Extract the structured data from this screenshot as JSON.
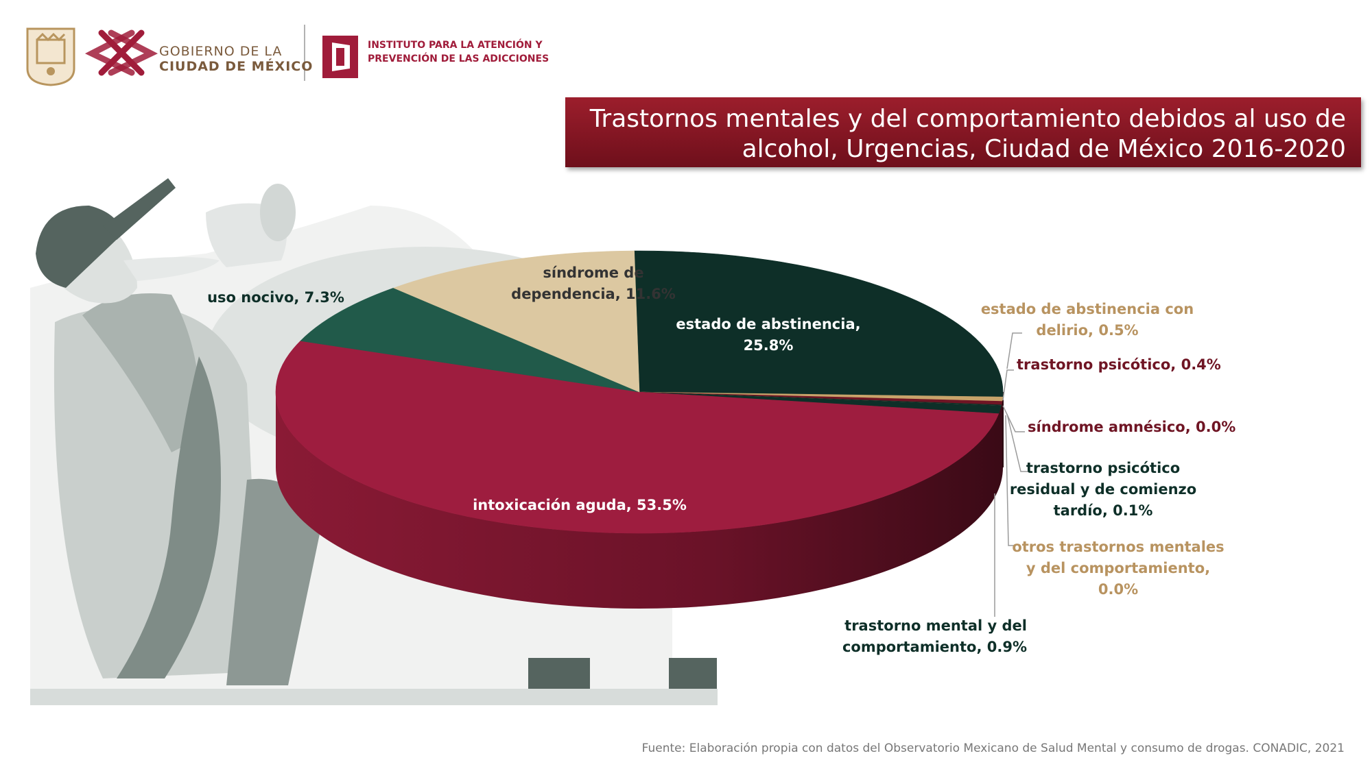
{
  "header": {
    "gobierno_line1": "GOBIERNO DE LA",
    "gobierno_line2": "CIUDAD DE MÉXICO",
    "instituto_line1": "INSTITUTO PARA LA ATENCIÓN Y",
    "instituto_line2": "PREVENCIÓN DE LAS ADICCIONES"
  },
  "colors": {
    "intoxicacion": "#9e1d3f",
    "abstinencia": "#0e2f28",
    "dependencia": "#dcc8a1",
    "uso_nocivo": "#215a4a",
    "small_tan": "#c8a36a",
    "small_maroon": "#6f1524",
    "label_tan": "#b89360",
    "label_maroon": "#6f1524",
    "label_green": "#0e2f28"
  },
  "chart_data": {
    "type": "pie",
    "title": "Trastornos mentales y del comportamiento debidos al uso de alcohol, Urgencias, Ciudad de México 2016-2020",
    "title_line1": "Trastornos mentales y del comportamiento debidos al uso de",
    "title_line2": "alcohol, Urgencias, Ciudad de México 2016-2020",
    "slices": [
      {
        "name": "estado de abstinencia",
        "value": 25.8,
        "label_lines": [
          "estado de abstinencia,",
          "25.8%"
        ]
      },
      {
        "name": "estado de abstinencia con delirio",
        "value": 0.5,
        "label_lines": [
          "estado de abstinencia con",
          "delirio, 0.5%"
        ]
      },
      {
        "name": "trastorno psicótico",
        "value": 0.4,
        "label_lines": [
          "trastorno psicótico, 0.4%"
        ]
      },
      {
        "name": "síndrome amnésico",
        "value": 0.0,
        "label_lines": [
          "síndrome amnésico, 0.0%"
        ]
      },
      {
        "name": "trastorno psicótico residual y de comienzo tardío",
        "value": 0.1,
        "label_lines": [
          "trastorno psicótico",
          "residual y de comienzo",
          "tardío, 0.1%"
        ]
      },
      {
        "name": "otros trastornos mentales y del comportamiento",
        "value": 0.0,
        "label_lines": [
          "otros trastornos mentales",
          "y del comportamiento,",
          "0.0%"
        ]
      },
      {
        "name": "trastorno mental y del comportamiento",
        "value": 0.9,
        "label_lines": [
          "trastorno mental y del",
          "comportamiento, 0.9%"
        ]
      },
      {
        "name": "intoxicación aguda",
        "value": 53.5,
        "label_lines": [
          "intoxicación aguda, 53.5%"
        ]
      },
      {
        "name": "uso nocivo",
        "value": 7.3,
        "label_lines": [
          "uso nocivo, 7.3%"
        ]
      },
      {
        "name": "síndrome de dependencia",
        "value": 11.6,
        "label_lines": [
          "síndrome de",
          "dependencia, 11.6%"
        ]
      }
    ]
  },
  "source": "Fuente: Elaboración propia con datos del Observatorio Mexicano de Salud Mental y consumo de drogas. CONADIC, 2021"
}
